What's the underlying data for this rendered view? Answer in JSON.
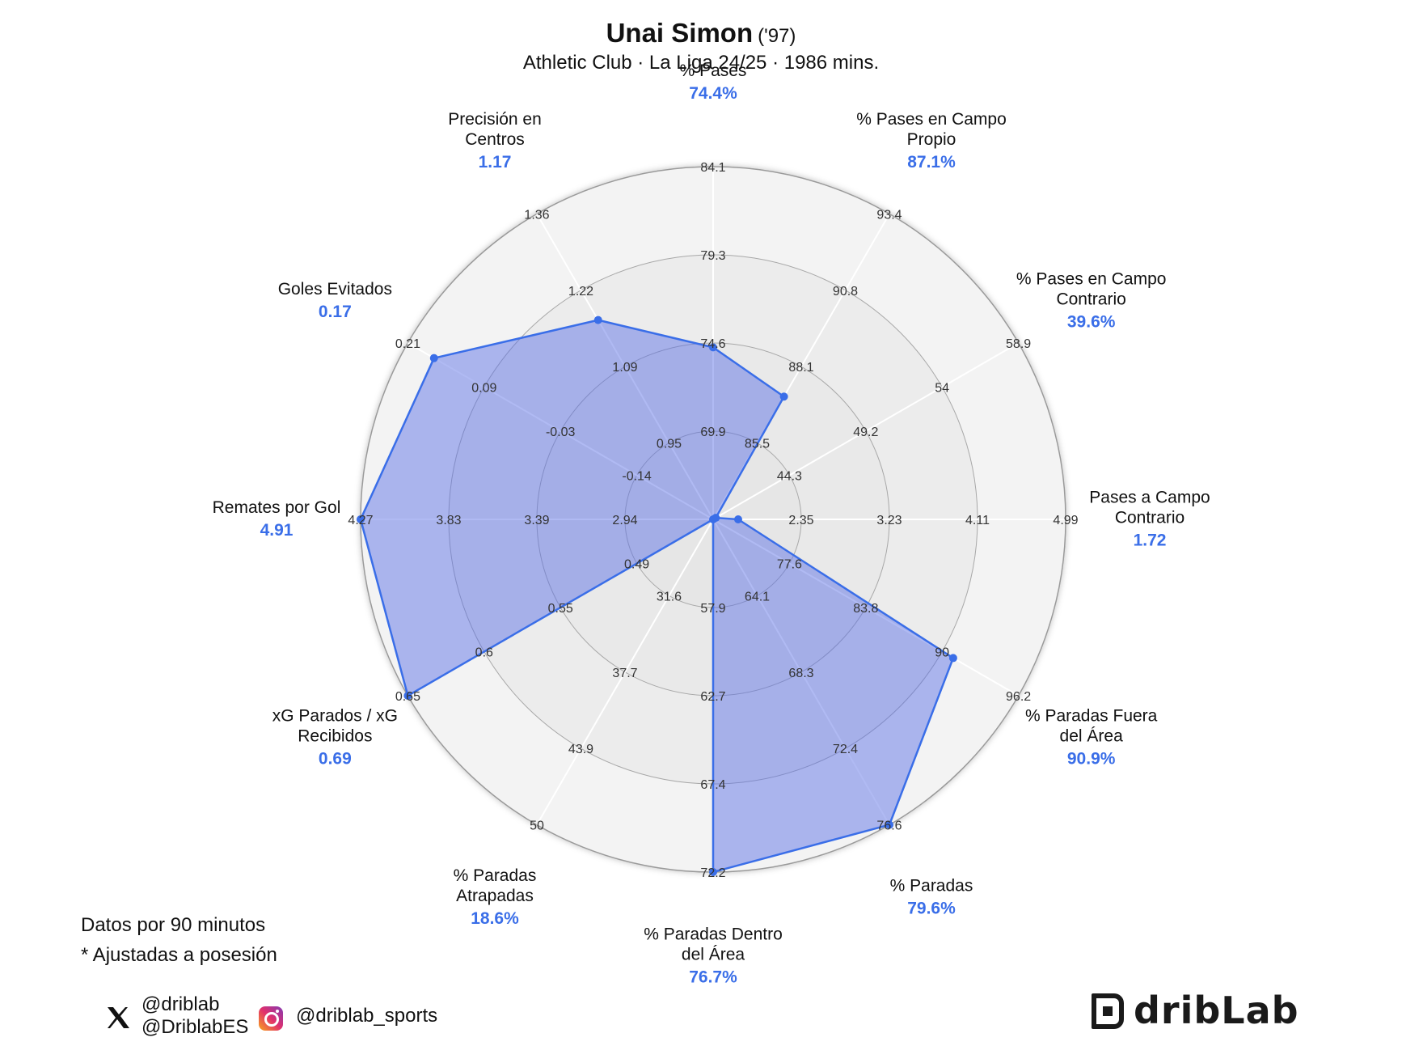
{
  "header": {
    "title": "Unai Simon",
    "title_year": "('97)",
    "subtitle": "Athletic Club · La Liga 24/25 · 1986 mins."
  },
  "notes": {
    "line1": "Datos por 90 minutos",
    "line2": "* Ajustadas a posesión"
  },
  "social": {
    "x_handle_1": "@driblab",
    "x_handle_2": "@DriblabES",
    "instagram_handle": "@driblab_sports",
    "x_icon": "x-logo-icon",
    "instagram_icon": "instagram-icon"
  },
  "logo": {
    "text": "dribLab"
  },
  "colors": {
    "accent": "#3a6ee8",
    "fill": "#5a6ee6",
    "value_text": "#3a6ee8"
  },
  "chart_data": {
    "type": "radar",
    "title": "Unai Simon",
    "metrics": [
      {
        "label": "% Pases",
        "value_label": "74.4%",
        "value": 74.4,
        "ticks": [
          "69.9",
          "74.6",
          "79.3",
          "84.1"
        ]
      },
      {
        "label": "% Pases en Campo Propio",
        "value_label": "87.1%",
        "value": 87.1,
        "ticks": [
          "85.5",
          "88.1",
          "90.8",
          "93.4"
        ]
      },
      {
        "label": "% Pases en Campo Contrario",
        "value_label": "39.6%",
        "value": 39.6,
        "ticks": [
          "44.3",
          "49.2",
          "54",
          "58.9"
        ]
      },
      {
        "label": "Pases a Campo Contrario",
        "value_label": "1.72",
        "value": 1.72,
        "ticks": [
          "2.35",
          "3.23",
          "4.11",
          "4.99"
        ]
      },
      {
        "label": "% Paradas Fuera del Área",
        "value_label": "90.9%",
        "value": 90.9,
        "ticks": [
          "77.6",
          "83.8",
          "90",
          "96.2"
        ]
      },
      {
        "label": "% Paradas",
        "value_label": "79.6%",
        "value": 79.6,
        "ticks": [
          "64.1",
          "68.3",
          "72.4",
          "76.6"
        ]
      },
      {
        "label": "% Paradas Dentro del Área",
        "value_label": "76.7%",
        "value": 76.7,
        "ticks": [
          "57.9",
          "62.7",
          "67.4",
          "72.2"
        ]
      },
      {
        "label": "% Paradas Atrapadas",
        "value_label": "18.6%",
        "value": 18.6,
        "ticks": [
          "31.6",
          "37.7",
          "43.9",
          "50"
        ]
      },
      {
        "label": "xG Parados / xG Recibidos",
        "value_label": "0.69",
        "value": 0.69,
        "ticks": [
          "0.49",
          "0.55",
          "0.6",
          "0.65"
        ]
      },
      {
        "label": "Remates por Gol",
        "value_label": "4.91",
        "value": 4.91,
        "ticks": [
          "2.94",
          "3.39",
          "3.83",
          "4.27"
        ]
      },
      {
        "label": "Goles Evitados",
        "value_label": "0.17",
        "value": 0.17,
        "ticks": [
          "-0.14",
          "-0.03",
          "0.09",
          "0.21"
        ]
      },
      {
        "label": "Precisión en Centros",
        "value_label": "1.17",
        "value": 1.17,
        "ticks": [
          "0.95",
          "1.09",
          "1.22",
          "1.36"
        ]
      }
    ]
  }
}
